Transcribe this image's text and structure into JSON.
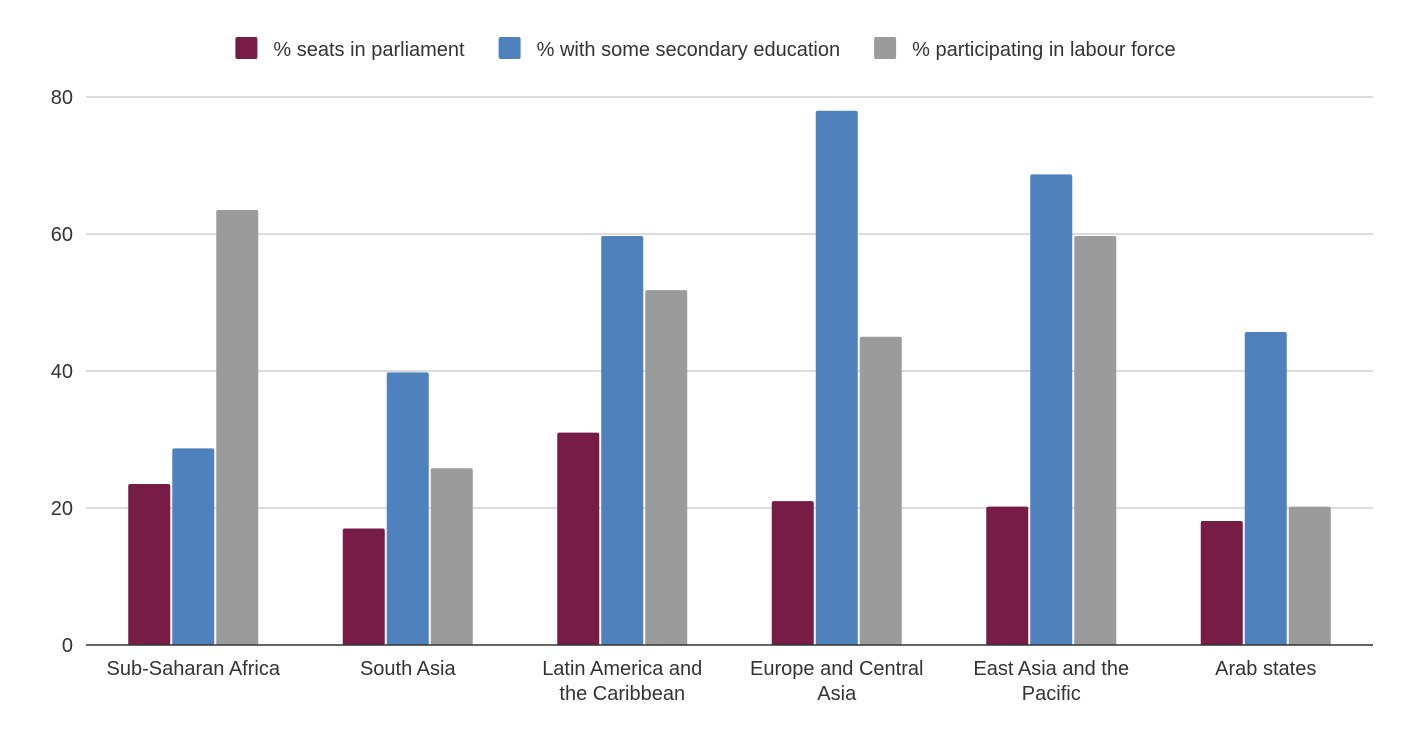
{
  "chart_data": {
    "type": "bar",
    "title": "",
    "xlabel": "",
    "ylabel": "",
    "ylim": [
      0,
      80
    ],
    "yticks": [
      0,
      20,
      40,
      60,
      80
    ],
    "grid": true,
    "legend_position": "top",
    "categories": [
      [
        "Sub-Saharan Africa"
      ],
      [
        "South Asia"
      ],
      [
        "Latin America and",
        "the Caribbean"
      ],
      [
        "Europe and Central",
        "Asia"
      ],
      [
        "East Asia and the",
        "Pacific"
      ],
      [
        "Arab states"
      ]
    ],
    "series": [
      {
        "name": "% seats in parliament",
        "color": "#761c45",
        "values": [
          23.5,
          17,
          31,
          21,
          20.2,
          18.1
        ]
      },
      {
        "name": "% with some secondary education",
        "color": "#4f81bd",
        "values": [
          28.7,
          39.8,
          59.7,
          78,
          68.7,
          45.7
        ]
      },
      {
        "name": "% participating in labour force",
        "color": "#9b9b9b",
        "values": [
          63.5,
          25.8,
          51.8,
          45,
          59.7,
          20.2
        ]
      }
    ]
  }
}
